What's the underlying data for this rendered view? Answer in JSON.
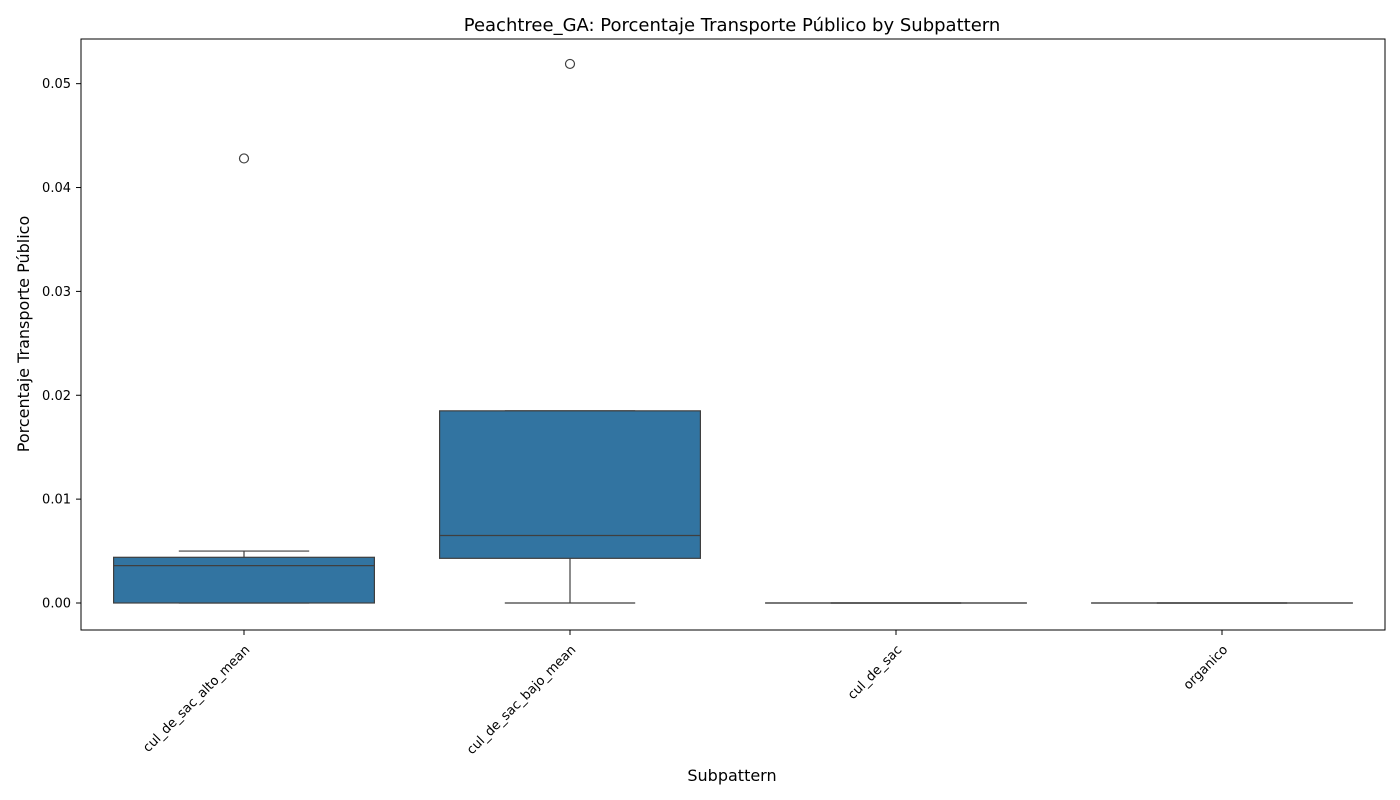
{
  "chart_data": {
    "type": "box",
    "title": "Peachtree_GA: Porcentaje Transporte Público by Subpattern",
    "xlabel": "Subpattern",
    "ylabel": "Porcentaje Transporte Público",
    "ylim": [
      -0.0026,
      0.0543
    ],
    "yticks": [
      "0.00",
      "0.01",
      "0.02",
      "0.03",
      "0.04",
      "0.05"
    ],
    "grid": false,
    "box_color": "#3274a1",
    "categories": [
      "cul_de_sac_alto_mean",
      "cul_de_sac_bajo_mean",
      "cul_de_sac",
      "organico"
    ],
    "boxes": [
      {
        "category": "cul_de_sac_alto_mean",
        "whisker_low": 0.0,
        "q1": 0.0,
        "median": 0.0036,
        "q3": 0.0044,
        "whisker_high": 0.005,
        "outliers": [
          0.0428
        ]
      },
      {
        "category": "cul_de_sac_bajo_mean",
        "whisker_low": 0.0,
        "q1": 0.0043,
        "median": 0.0065,
        "q3": 0.0185,
        "whisker_high": 0.0185,
        "outliers": [
          0.0519
        ]
      },
      {
        "category": "cul_de_sac",
        "whisker_low": 0.0,
        "q1": 0.0,
        "median": 0.0,
        "q3": 0.0,
        "whisker_high": 0.0,
        "outliers": []
      },
      {
        "category": "organico",
        "whisker_low": 0.0,
        "q1": 0.0,
        "median": 0.0,
        "q3": 0.0,
        "whisker_high": 0.0,
        "outliers": []
      }
    ]
  }
}
